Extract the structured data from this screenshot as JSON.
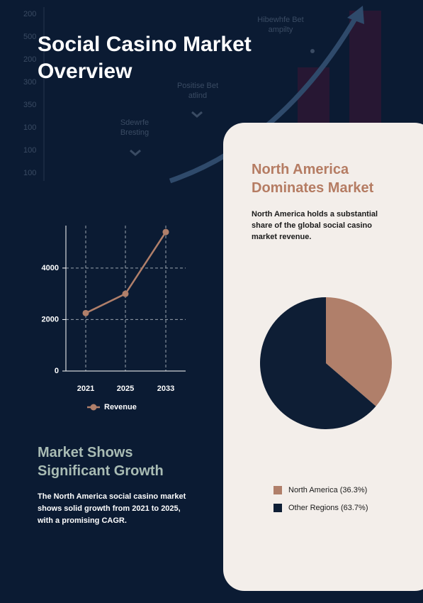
{
  "title": "Social Casino Market Overview",
  "background": {
    "axis_labels": [
      "200",
      "500",
      "200",
      "300",
      "350",
      "100",
      "100",
      "100"
    ],
    "annotations": [
      "Sdewrfe Bresting",
      "Positise Bet atlind",
      "Hibewhfe Bet ampilty"
    ]
  },
  "chart_data": [
    {
      "type": "line",
      "title": "Market Shows Significant Growth",
      "description": "The North America social casino market shows solid growth from 2021 to 2025, with a promising CAGR.",
      "categories": [
        "2021",
        "2025",
        "2033"
      ],
      "series": [
        {
          "name": "Revenue",
          "color": "#b07f6a",
          "values": [
            2250,
            3000,
            5400
          ]
        }
      ],
      "ylim": [
        0,
        5650
      ],
      "yticks": [
        0,
        2000,
        4000
      ],
      "grid": true,
      "legend": "bottom"
    },
    {
      "type": "pie",
      "title": "North America Dominates Market",
      "description": "North America holds a substantial share of the global social casino market revenue.",
      "categories": [
        "North America (36.3%)",
        "Other Regions (63.7%)"
      ],
      "values": [
        36.3,
        63.7
      ],
      "colors": [
        "#b07f6a",
        "#0e1e35"
      ],
      "legend": "bottom"
    }
  ]
}
